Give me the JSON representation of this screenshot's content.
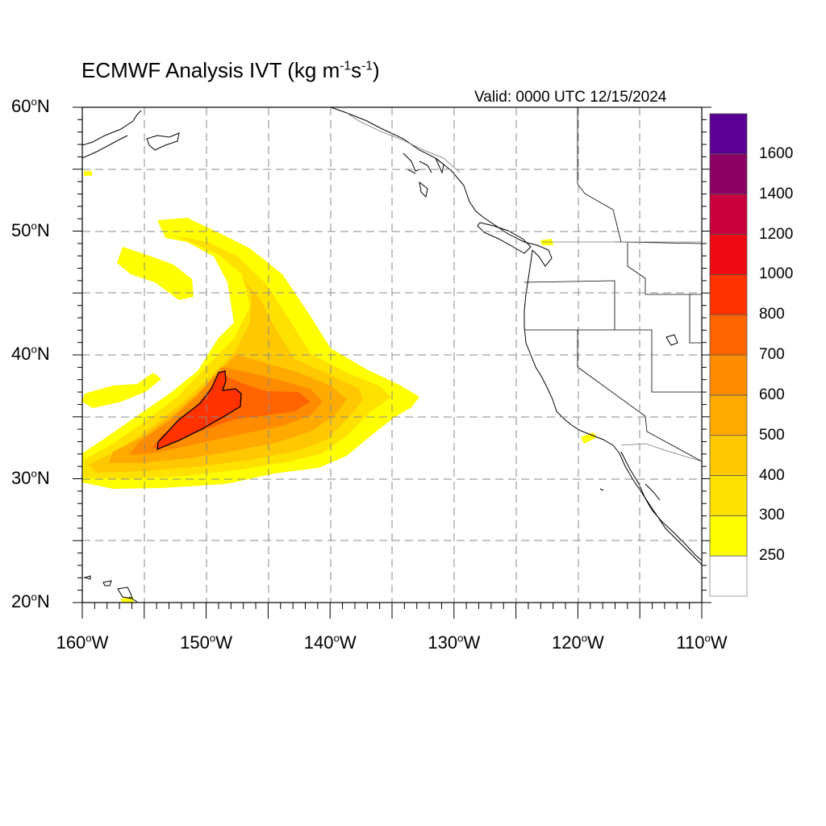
{
  "title": {
    "main": "ECMWF Analysis IVT (kg m",
    "sup1": "-1",
    "mid": "s",
    "sup2": "-1",
    "end": ")"
  },
  "valid": "Valid: 0000 UTC 12/15/2024",
  "y_axis": {
    "ticks": [
      {
        "value": 60,
        "label": "60",
        "deg": "o",
        "suffix": "N"
      },
      {
        "value": 50,
        "label": "50",
        "deg": "o",
        "suffix": "N"
      },
      {
        "value": 40,
        "label": "40",
        "deg": "o",
        "suffix": "N"
      },
      {
        "value": 30,
        "label": "30",
        "deg": "o",
        "suffix": "N"
      },
      {
        "value": 20,
        "label": "20",
        "deg": "o",
        "suffix": "N"
      }
    ]
  },
  "x_axis": {
    "ticks": [
      {
        "value": -160,
        "label": "160",
        "deg": "o",
        "suffix": "W"
      },
      {
        "value": -150,
        "label": "150",
        "deg": "o",
        "suffix": "W"
      },
      {
        "value": -140,
        "label": "140",
        "deg": "o",
        "suffix": "W"
      },
      {
        "value": -130,
        "label": "130",
        "deg": "o",
        "suffix": "W"
      },
      {
        "value": -120,
        "label": "120",
        "deg": "o",
        "suffix": "W"
      },
      {
        "value": -110,
        "label": "110",
        "deg": "o",
        "suffix": "W"
      }
    ]
  },
  "colorbar": {
    "levels": [
      "250",
      "300",
      "400",
      "500",
      "600",
      "700",
      "800",
      "1000",
      "1200",
      "1400",
      "1600"
    ],
    "colors": [
      "#ffffff",
      "#ffff00",
      "#ffe100",
      "#ffc800",
      "#ffaa00",
      "#ff8c00",
      "#ff6400",
      "#ff3200",
      "#ee0a12",
      "#c8003c",
      "#8c0064",
      "#5a0096"
    ]
  },
  "map": {
    "extent": {
      "lon": [
        -160,
        -110
      ],
      "lat": [
        20,
        60
      ]
    },
    "grid": "dashed",
    "colors": {
      "coast": "#000000",
      "grid": "#888888"
    }
  }
}
